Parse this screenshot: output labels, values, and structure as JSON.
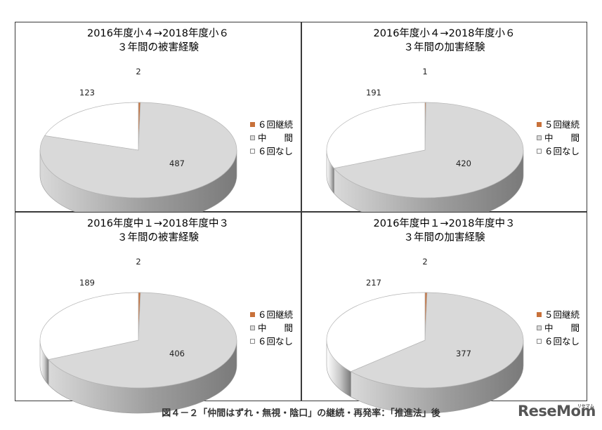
{
  "chart_data": [
    {
      "type": "pie",
      "title_lines": [
        "2016年度小４→2018年度小６",
        "３年間の被害経験"
      ],
      "categories": [
        "６回継続",
        "中　　間",
        "６回なし"
      ],
      "values": [
        2,
        487,
        123
      ],
      "colors": [
        "#c8713a",
        "#d9d9d9",
        "#ffffff"
      ]
    },
    {
      "type": "pie",
      "title_lines": [
        "2016年度小４→2018年度小６",
        "３年間の加害経験"
      ],
      "categories": [
        "５回継続",
        "中　　間",
        "６回なし"
      ],
      "values": [
        1,
        420,
        191
      ],
      "colors": [
        "#c8713a",
        "#d9d9d9",
        "#ffffff"
      ]
    },
    {
      "type": "pie",
      "title_lines": [
        "2016年度中１→2018年度中３",
        "３年間の被害経験"
      ],
      "categories": [
        "６回継続",
        "中　　間",
        "６回なし"
      ],
      "values": [
        2,
        406,
        189
      ],
      "colors": [
        "#c8713a",
        "#d9d9d9",
        "#ffffff"
      ]
    },
    {
      "type": "pie",
      "title_lines": [
        "2016年度中１→2018年度中３",
        "３年間の加害経験"
      ],
      "categories": [
        "５回継続",
        "中　　間",
        "６回なし"
      ],
      "values": [
        2,
        377,
        217
      ],
      "colors": [
        "#c8713a",
        "#d9d9d9",
        "#ffffff"
      ]
    }
  ],
  "caption": "図４－２「仲間はずれ・無視・陰口」の継続・再発率：「推進法」後",
  "logo": {
    "text": "ReseMom",
    "small": "リセマム"
  }
}
